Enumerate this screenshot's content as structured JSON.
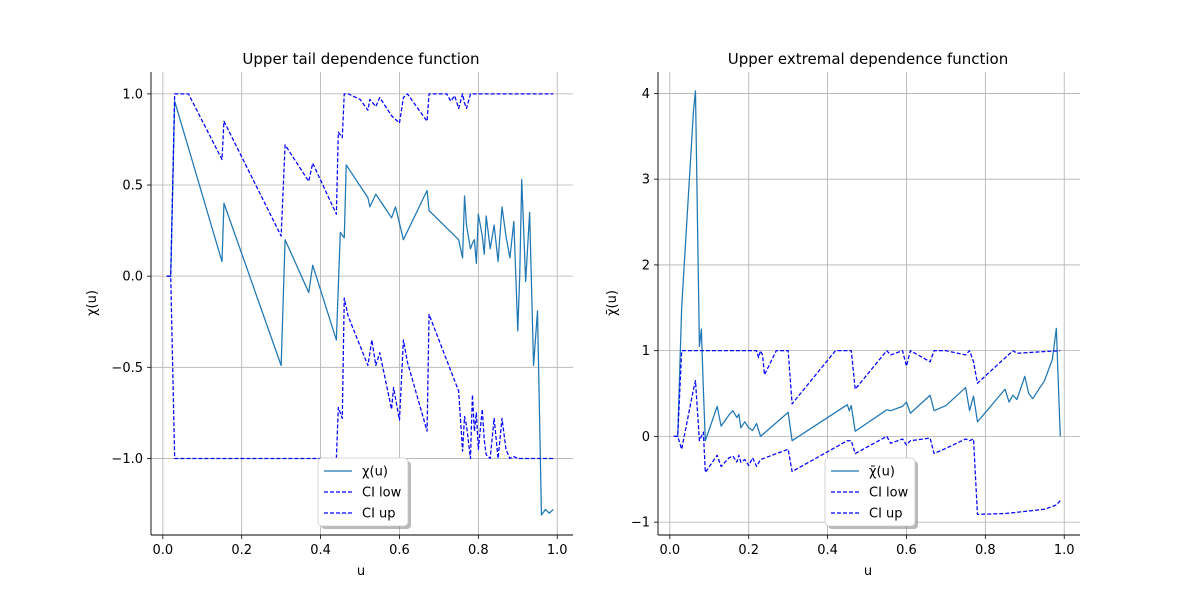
{
  "colors": {
    "chi": "#1f77b4",
    "ci": "#0000ff",
    "grid": "#b0b0b0"
  },
  "chart_data": [
    {
      "type": "line",
      "title": "Upper tail dependence function",
      "xlabel": "u",
      "ylabel": "χ(u)",
      "xlim": [
        -0.03,
        1.04
      ],
      "ylim": [
        -1.42,
        1.12
      ],
      "xticks": [
        0.0,
        0.2,
        0.4,
        0.6,
        0.8,
        1.0
      ],
      "xtick_labels": [
        "0.0",
        "0.2",
        "0.4",
        "0.6",
        "0.8",
        "1.0"
      ],
      "yticks": [
        -1.0,
        -0.5,
        0.0,
        0.5,
        1.0
      ],
      "ytick_labels": [
        "−1.0",
        "−0.5",
        "0.0",
        "0.5",
        "1.0"
      ],
      "grid": true,
      "legend_position": "lower-center",
      "series": [
        {
          "name": "χ(u)",
          "style": "solid",
          "x": [
            0.01,
            0.02,
            0.03,
            0.15,
            0.155,
            0.3,
            0.31,
            0.37,
            0.38,
            0.44,
            0.45,
            0.46,
            0.465,
            0.52,
            0.525,
            0.54,
            0.58,
            0.59,
            0.6,
            0.61,
            0.67,
            0.675,
            0.75,
            0.76,
            0.765,
            0.77,
            0.78,
            0.785,
            0.79,
            0.795,
            0.8,
            0.81,
            0.815,
            0.82,
            0.83,
            0.84,
            0.85,
            0.86,
            0.87,
            0.88,
            0.89,
            0.9,
            0.905,
            0.91,
            0.92,
            0.93,
            0.94,
            0.95,
            0.96,
            0.97,
            0.975,
            0.98,
            0.99
          ],
          "y": [
            0.0,
            0.0,
            0.96,
            0.08,
            0.4,
            -0.49,
            0.2,
            -0.09,
            0.06,
            -0.35,
            0.24,
            0.21,
            0.61,
            0.43,
            0.38,
            0.45,
            0.32,
            0.38,
            0.29,
            0.2,
            0.47,
            0.36,
            0.2,
            0.1,
            0.44,
            0.28,
            0.15,
            0.18,
            0.2,
            0.07,
            0.34,
            0.22,
            0.12,
            0.33,
            0.15,
            0.28,
            0.08,
            0.38,
            0.22,
            0.1,
            0.3,
            -0.3,
            0.01,
            0.53,
            -0.03,
            0.35,
            -0.49,
            -0.19,
            -1.31,
            -1.28,
            -1.29,
            -1.3,
            -1.28
          ]
        },
        {
          "name": "CI low",
          "style": "dashed",
          "x": [
            0.01,
            0.02,
            0.03,
            0.075,
            0.15,
            0.155,
            0.3,
            0.31,
            0.37,
            0.38,
            0.44,
            0.445,
            0.455,
            0.46,
            0.47,
            0.52,
            0.53,
            0.54,
            0.55,
            0.58,
            0.585,
            0.6,
            0.61,
            0.62,
            0.67,
            0.675,
            0.75,
            0.76,
            0.765,
            0.77,
            0.78,
            0.785,
            0.79,
            0.795,
            0.8,
            0.81,
            0.815,
            0.82,
            0.83,
            0.84,
            0.85,
            0.86,
            0.87,
            0.88,
            0.89,
            0.9,
            0.905,
            0.91,
            0.92,
            0.99
          ],
          "y": [
            0.0,
            0.0,
            -1.0,
            -1.0,
            -1.0,
            -1.0,
            -1.0,
            -1.0,
            -1.0,
            -1.0,
            -1.0,
            -0.72,
            -0.78,
            -0.12,
            -0.22,
            -0.49,
            -0.35,
            -0.49,
            -0.42,
            -0.73,
            -0.61,
            -0.79,
            -0.35,
            -0.47,
            -0.85,
            -0.21,
            -0.63,
            -0.96,
            -0.77,
            -0.82,
            -1.0,
            -0.65,
            -0.85,
            -0.75,
            -0.95,
            -0.73,
            -0.9,
            -0.98,
            -1.0,
            -0.78,
            -1.0,
            -0.78,
            -0.95,
            -1.0,
            -0.99,
            -1.0,
            -1.0,
            -1.0,
            -1.0,
            -1.0
          ]
        },
        {
          "name": "CI up",
          "style": "dashed",
          "x": [
            0.01,
            0.02,
            0.03,
            0.065,
            0.15,
            0.155,
            0.3,
            0.31,
            0.37,
            0.38,
            0.44,
            0.445,
            0.455,
            0.46,
            0.47,
            0.5,
            0.52,
            0.525,
            0.54,
            0.55,
            0.58,
            0.6,
            0.61,
            0.62,
            0.67,
            0.675,
            0.72,
            0.73,
            0.74,
            0.75,
            0.76,
            0.765,
            0.77,
            0.78,
            0.785,
            0.99
          ],
          "y": [
            0.0,
            0.0,
            1.0,
            1.0,
            0.64,
            0.85,
            0.22,
            0.72,
            0.52,
            0.62,
            0.34,
            0.79,
            0.76,
            1.0,
            1.0,
            0.97,
            0.91,
            0.97,
            0.93,
            0.98,
            0.88,
            0.84,
            0.98,
            1.0,
            0.85,
            1.0,
            1.0,
            0.96,
            0.99,
            0.92,
            1.0,
            0.95,
            0.92,
            1.0,
            1.0,
            1.0
          ]
        }
      ]
    },
    {
      "type": "line",
      "title": "Upper extremal dependence function",
      "xlabel": "u",
      "ylabel": "χ̄(u)",
      "xlim": [
        -0.03,
        1.04
      ],
      "ylim": [
        -1.15,
        4.25
      ],
      "xticks": [
        0.0,
        0.2,
        0.4,
        0.6,
        0.8,
        1.0
      ],
      "xtick_labels": [
        "0.0",
        "0.2",
        "0.4",
        "0.6",
        "0.8",
        "1.0"
      ],
      "yticks": [
        -1,
        0,
        1,
        2,
        3,
        4
      ],
      "ytick_labels": [
        "−1",
        "0",
        "1",
        "2",
        "3",
        "4"
      ],
      "grid": true,
      "legend_position": "lower-center",
      "series": [
        {
          "name": "χ̄(u)",
          "style": "solid",
          "x": [
            0.01,
            0.02,
            0.03,
            0.06,
            0.065,
            0.075,
            0.08,
            0.085,
            0.09,
            0.12,
            0.13,
            0.15,
            0.16,
            0.17,
            0.175,
            0.18,
            0.19,
            0.2,
            0.21,
            0.22,
            0.23,
            0.3,
            0.31,
            0.45,
            0.455,
            0.46,
            0.47,
            0.55,
            0.56,
            0.59,
            0.6,
            0.61,
            0.66,
            0.67,
            0.7,
            0.75,
            0.76,
            0.77,
            0.78,
            0.85,
            0.86,
            0.87,
            0.88,
            0.9,
            0.91,
            0.92,
            0.95,
            0.97,
            0.98,
            0.99
          ],
          "y": [
            0.0,
            0.0,
            1.5,
            3.8,
            4.03,
            1.05,
            1.25,
            0.55,
            -0.05,
            0.35,
            0.12,
            0.25,
            0.3,
            0.22,
            0.26,
            0.1,
            0.17,
            0.1,
            0.07,
            0.15,
            0.0,
            0.28,
            -0.05,
            0.37,
            0.3,
            0.36,
            0.06,
            0.31,
            0.3,
            0.35,
            0.4,
            0.27,
            0.48,
            0.3,
            0.36,
            0.57,
            0.3,
            0.47,
            0.17,
            0.55,
            0.4,
            0.48,
            0.43,
            0.7,
            0.5,
            0.44,
            0.65,
            0.9,
            1.26,
            0.0
          ]
        },
        {
          "name": "CI low",
          "style": "dashed",
          "x": [
            0.01,
            0.02,
            0.03,
            0.06,
            0.065,
            0.075,
            0.085,
            0.09,
            0.12,
            0.13,
            0.15,
            0.16,
            0.17,
            0.175,
            0.18,
            0.19,
            0.2,
            0.21,
            0.22,
            0.23,
            0.3,
            0.31,
            0.45,
            0.46,
            0.47,
            0.55,
            0.56,
            0.59,
            0.6,
            0.61,
            0.66,
            0.67,
            0.7,
            0.75,
            0.76,
            0.77,
            0.78,
            0.85,
            0.95,
            0.98,
            0.99
          ],
          "y": [
            0.0,
            0.0,
            -0.15,
            0.55,
            0.65,
            -0.05,
            0.05,
            -0.42,
            -0.22,
            -0.35,
            -0.25,
            -0.23,
            -0.3,
            -0.22,
            -0.3,
            -0.27,
            -0.34,
            -0.25,
            -0.35,
            -0.27,
            -0.15,
            -0.41,
            -0.05,
            -0.05,
            -0.2,
            0.0,
            -0.08,
            -0.03,
            -0.1,
            -0.05,
            -0.02,
            -0.2,
            -0.14,
            -0.03,
            -0.05,
            -0.03,
            -0.91,
            -0.9,
            -0.85,
            -0.8,
            -0.75
          ]
        },
        {
          "name": "CI up",
          "style": "dashed",
          "x": [
            0.01,
            0.02,
            0.03,
            0.06,
            0.065,
            0.075,
            0.085,
            0.09,
            0.22,
            0.225,
            0.23,
            0.235,
            0.24,
            0.27,
            0.3,
            0.31,
            0.42,
            0.45,
            0.46,
            0.47,
            0.55,
            0.56,
            0.59,
            0.6,
            0.61,
            0.66,
            0.67,
            0.7,
            0.75,
            0.76,
            0.77,
            0.78,
            0.87,
            0.88,
            0.99
          ],
          "y": [
            0.0,
            0.0,
            1.0,
            1.0,
            1.0,
            1.0,
            1.0,
            1.0,
            1.0,
            0.92,
            1.0,
            0.95,
            0.72,
            1.0,
            1.0,
            0.38,
            1.0,
            1.0,
            1.0,
            0.55,
            1.0,
            0.95,
            1.0,
            0.82,
            1.0,
            0.87,
            1.0,
            1.0,
            0.95,
            1.0,
            0.87,
            0.62,
            1.0,
            0.97,
            1.0
          ]
        }
      ]
    }
  ]
}
